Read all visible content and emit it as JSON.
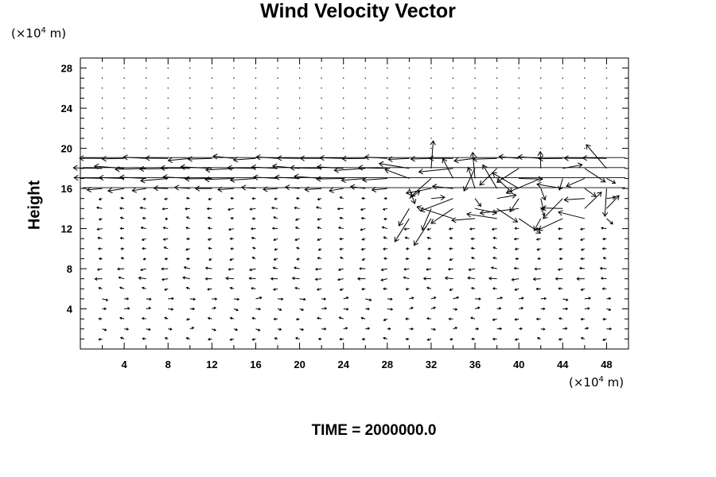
{
  "chart_data": {
    "type": "vector-field",
    "title": "Wind Velocity Vector",
    "ylabel": "Height",
    "x_unit_prefix": "(×10",
    "x_unit_exp": "4",
    "x_unit_suffix": " m)",
    "y_unit_prefix": "(×10",
    "y_unit_exp": "4",
    "y_unit_suffix": " m)",
    "xlim": [
      0,
      50
    ],
    "ylim": [
      0,
      29
    ],
    "x_ticks": [
      4,
      8,
      12,
      16,
      20,
      24,
      28,
      32,
      36,
      40,
      44,
      48
    ],
    "y_ticks": [
      4,
      8,
      12,
      16,
      20,
      24,
      28
    ],
    "time_label": "TIME = 2000000.0",
    "grid_x": [
      0,
      2,
      4,
      6,
      8,
      10,
      12,
      14,
      16,
      18,
      20,
      22,
      24,
      26,
      28,
      30,
      32,
      34,
      36,
      38,
      40,
      42,
      44,
      46,
      48,
      50
    ],
    "grid_y": [
      1,
      2,
      3,
      4,
      5,
      6,
      7,
      8,
      9,
      10,
      11,
      12,
      13,
      14,
      15,
      16,
      17,
      18,
      19,
      20,
      21,
      22,
      23,
      24,
      25,
      26,
      27,
      28
    ],
    "vector_scale_note": "vector components in 10^4 m length-equivalent",
    "jet_layers": [
      {
        "y": 19,
        "u": -2.0,
        "v": 0.0
      },
      {
        "y": 18,
        "u": -2.6,
        "v": 0.0
      },
      {
        "y": 17,
        "u": -2.4,
        "v": 0.0
      },
      {
        "y": 16,
        "u": -1.4,
        "v": 0.0
      }
    ],
    "low_levels": [
      {
        "y": 1,
        "u": -0.3
      },
      {
        "y": 2,
        "u": 0.35
      },
      {
        "y": 3,
        "u": -0.35
      },
      {
        "y": 4,
        "u": 0.4
      },
      {
        "y": 5,
        "u": 0.45
      },
      {
        "y": 6,
        "u": -0.35
      },
      {
        "y": 7,
        "u": -0.6
      },
      {
        "y": 8,
        "u": -0.5
      },
      {
        "y": 9,
        "u": -0.3
      },
      {
        "y": 10,
        "u": -0.3
      },
      {
        "y": 11,
        "u": -0.35
      },
      {
        "y": 12,
        "u": -0.4
      },
      {
        "y": 13,
        "u": -0.3
      },
      {
        "y": 14,
        "u": -0.45
      },
      {
        "y": 15,
        "u": -0.3
      }
    ],
    "disturbed_region": {
      "x_from": 30,
      "x_to": 50,
      "y_from": 13,
      "y_to": 18
    }
  }
}
